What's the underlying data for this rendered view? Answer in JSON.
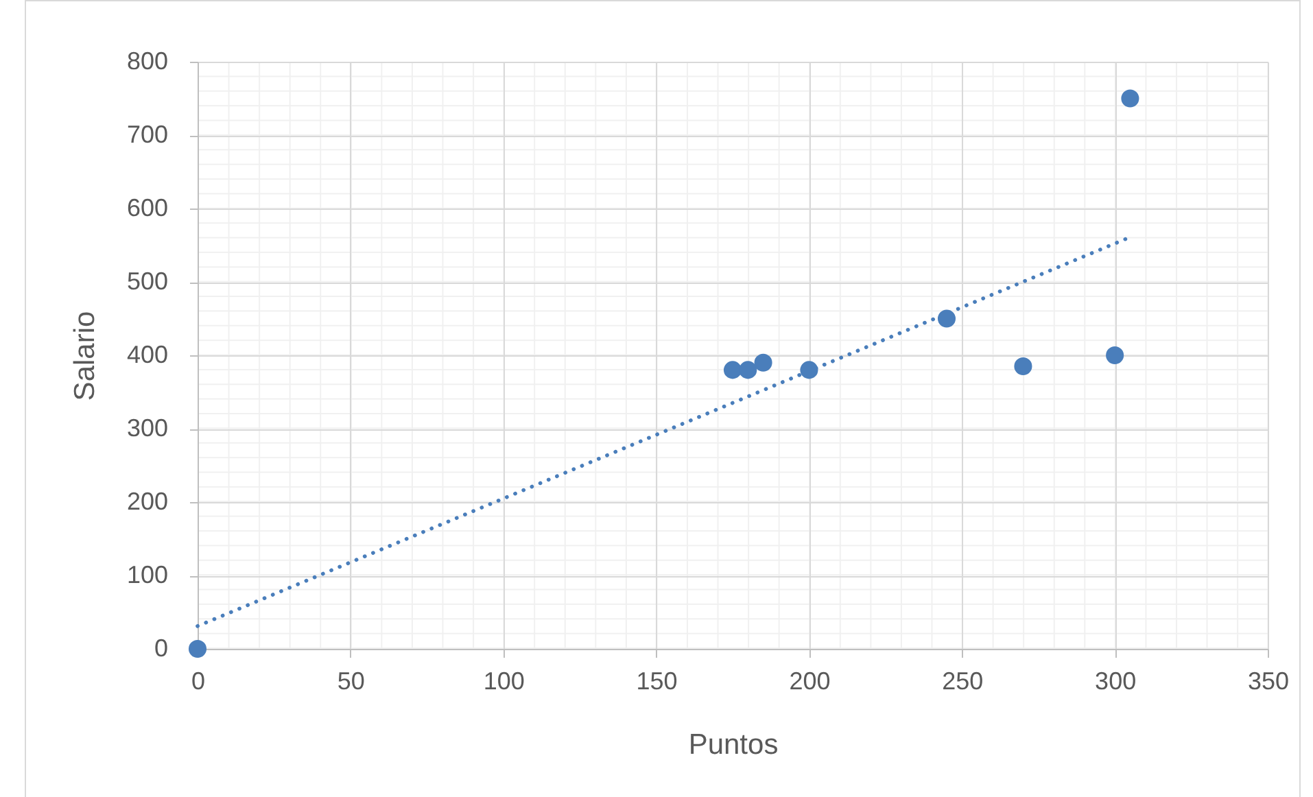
{
  "chart_data": {
    "type": "scatter",
    "xlabel": "Puntos",
    "ylabel": "Salario",
    "xlim": [
      0,
      350
    ],
    "ylim": [
      0,
      800
    ],
    "xticks": [
      0,
      50,
      100,
      150,
      200,
      250,
      300,
      350
    ],
    "yticks": [
      0,
      100,
      200,
      300,
      400,
      500,
      600,
      700,
      800
    ],
    "grid": true,
    "marker": "circle",
    "series": [
      {
        "color": "#4a7ebb",
        "x": [
          0,
          175,
          180,
          185,
          200,
          245,
          270,
          300,
          305
        ],
        "values": [
          0,
          380,
          380,
          390,
          380,
          450,
          385,
          400,
          750
        ]
      },
      {
        "type": "line",
        "line_style": "dotted",
        "marker": "none",
        "color": "#4a7ebb",
        "x": [
          0,
          305
        ],
        "values": [
          31,
          561
        ]
      }
    ]
  }
}
